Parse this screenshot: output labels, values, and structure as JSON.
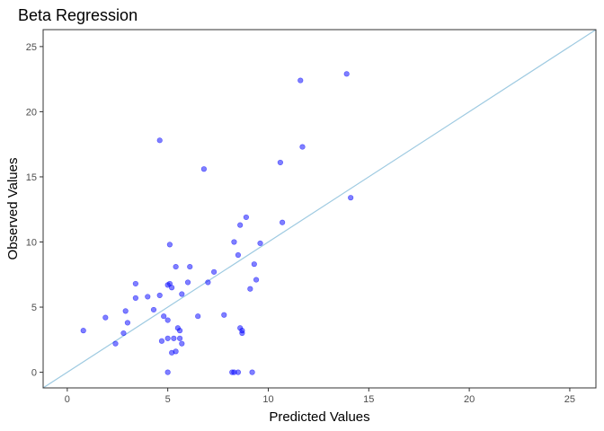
{
  "chart_data": {
    "type": "scatter",
    "title": "Beta Regression",
    "xlabel": "Predicted Values",
    "ylabel": "Observed Values",
    "xlim": [
      -1.2,
      26.3
    ],
    "ylim": [
      -1.2,
      26.3
    ],
    "x_ticks": [
      0,
      5,
      10,
      15,
      20,
      25
    ],
    "y_ticks": [
      0,
      5,
      10,
      15,
      20,
      25
    ],
    "grid": false,
    "point_color": "#0000ff",
    "line_color": "#9ecae1",
    "reference_line": {
      "slope": 1,
      "intercept": 0
    },
    "points": [
      {
        "x": 0.8,
        "y": 3.2
      },
      {
        "x": 1.9,
        "y": 4.2
      },
      {
        "x": 2.4,
        "y": 2.2
      },
      {
        "x": 2.8,
        "y": 3.0
      },
      {
        "x": 2.9,
        "y": 4.7
      },
      {
        "x": 3.0,
        "y": 3.8
      },
      {
        "x": 3.4,
        "y": 5.7
      },
      {
        "x": 3.4,
        "y": 6.8
      },
      {
        "x": 4.0,
        "y": 5.8
      },
      {
        "x": 4.3,
        "y": 4.8
      },
      {
        "x": 4.6,
        "y": 5.9
      },
      {
        "x": 4.6,
        "y": 17.8
      },
      {
        "x": 4.7,
        "y": 2.4
      },
      {
        "x": 4.8,
        "y": 4.3
      },
      {
        "x": 5.0,
        "y": 2.6
      },
      {
        "x": 5.0,
        "y": 0.0
      },
      {
        "x": 5.0,
        "y": 4.0
      },
      {
        "x": 5.0,
        "y": 6.7
      },
      {
        "x": 5.1,
        "y": 9.8
      },
      {
        "x": 5.1,
        "y": 6.8
      },
      {
        "x": 5.2,
        "y": 6.5
      },
      {
        "x": 5.2,
        "y": 1.5
      },
      {
        "x": 5.3,
        "y": 2.6
      },
      {
        "x": 5.4,
        "y": 1.6
      },
      {
        "x": 5.4,
        "y": 8.1
      },
      {
        "x": 5.5,
        "y": 3.4
      },
      {
        "x": 5.6,
        "y": 2.6
      },
      {
        "x": 5.6,
        "y": 3.2
      },
      {
        "x": 5.7,
        "y": 2.2
      },
      {
        "x": 5.7,
        "y": 6.0
      },
      {
        "x": 6.0,
        "y": 6.9
      },
      {
        "x": 6.1,
        "y": 8.1
      },
      {
        "x": 6.5,
        "y": 4.3
      },
      {
        "x": 6.8,
        "y": 15.6
      },
      {
        "x": 7.0,
        "y": 6.9
      },
      {
        "x": 7.3,
        "y": 7.7
      },
      {
        "x": 7.8,
        "y": 4.4
      },
      {
        "x": 8.2,
        "y": 0.0
      },
      {
        "x": 8.3,
        "y": 0.0
      },
      {
        "x": 8.3,
        "y": 10.0
      },
      {
        "x": 8.5,
        "y": 9.0
      },
      {
        "x": 8.5,
        "y": 0.0
      },
      {
        "x": 8.6,
        "y": 11.3
      },
      {
        "x": 8.6,
        "y": 3.4
      },
      {
        "x": 8.7,
        "y": 3.2
      },
      {
        "x": 8.7,
        "y": 3.0
      },
      {
        "x": 8.9,
        "y": 11.9
      },
      {
        "x": 9.1,
        "y": 6.4
      },
      {
        "x": 9.2,
        "y": 0.0
      },
      {
        "x": 9.3,
        "y": 8.3
      },
      {
        "x": 9.4,
        "y": 7.1
      },
      {
        "x": 9.6,
        "y": 9.9
      },
      {
        "x": 10.6,
        "y": 16.1
      },
      {
        "x": 10.7,
        "y": 11.5
      },
      {
        "x": 11.6,
        "y": 22.4
      },
      {
        "x": 11.7,
        "y": 17.3
      },
      {
        "x": 13.9,
        "y": 22.9
      },
      {
        "x": 14.1,
        "y": 13.4
      }
    ]
  }
}
